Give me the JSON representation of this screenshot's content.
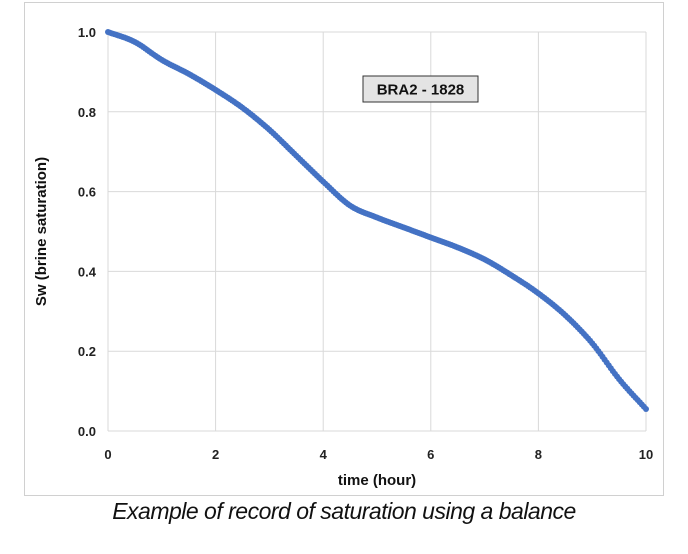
{
  "chart_data": {
    "type": "scatter",
    "title": "",
    "xlabel": "time (hour)",
    "ylabel": "Sw (brine saturation)",
    "xlim": [
      0,
      10
    ],
    "ylim": [
      0,
      1
    ],
    "x_ticks": [
      0,
      2,
      4,
      6,
      8,
      10
    ],
    "y_ticks": [
      0,
      0.2,
      0.4,
      0.6,
      0.8,
      1.0
    ],
    "x_tick_labels": [
      "0",
      "2",
      "4",
      "6",
      "8",
      "10"
    ],
    "y_tick_labels": [
      "0.0",
      "0.2",
      "0.4",
      "0.6",
      "0.8",
      "1.0"
    ],
    "grid": true,
    "legend": "none",
    "annotation": "BRA2 - 1828",
    "series": [
      {
        "color": "#4472C4",
        "x": [
          0,
          0.5,
          1.0,
          1.5,
          2.0,
          2.5,
          3.0,
          3.5,
          4.0,
          4.5,
          5.0,
          5.5,
          6.0,
          6.5,
          7.0,
          7.5,
          8.0,
          8.5,
          9.0,
          9.5,
          10.0
        ],
        "y": [
          1.0,
          0.975,
          0.93,
          0.895,
          0.855,
          0.81,
          0.755,
          0.69,
          0.625,
          0.565,
          0.535,
          0.51,
          0.485,
          0.46,
          0.43,
          0.39,
          0.345,
          0.29,
          0.22,
          0.13,
          0.055
        ]
      }
    ]
  },
  "caption": "Example of record of saturation using a balance"
}
